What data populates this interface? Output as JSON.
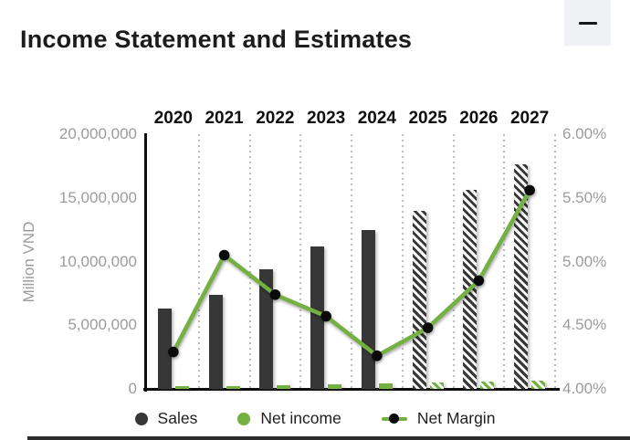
{
  "header": {
    "title": "Income Statement and Estimates",
    "collapse_button": "minimize"
  },
  "colors": {
    "sales": "#373737",
    "net_income": "#74b042",
    "net_margin_line": "#74b042",
    "marker_dot": "#0a0a0a",
    "tick_text": "#9c9c9c",
    "year_text": "#0f0f0f",
    "title_text": "#1c1c1e",
    "grid": "#bdbdbd"
  },
  "chart_data": {
    "type": "bar",
    "subtype": "grouped bars with overlay line",
    "categories": [
      "2020",
      "2021",
      "2022",
      "2023",
      "2024",
      "2025",
      "2026",
      "2027"
    ],
    "series": [
      {
        "name": "Sales",
        "type": "bar",
        "axis": "left",
        "values": [
          6300000,
          7400000,
          9400000,
          11200000,
          12500000,
          14000000,
          15600000,
          17600000
        ]
      },
      {
        "name": "Net income",
        "type": "bar",
        "axis": "left",
        "values": [
          200000,
          250000,
          320000,
          340000,
          420000,
          500000,
          600000,
          680000
        ]
      },
      {
        "name": "Net Margin",
        "type": "line",
        "axis": "right",
        "values": [
          4.29,
          5.05,
          4.74,
          4.57,
          4.26,
          4.48,
          4.85,
          5.56
        ]
      }
    ],
    "estimate_categories_hatched": [
      "2025",
      "2026",
      "2027"
    ],
    "left_axis": {
      "title": "Million VND",
      "min": 0,
      "max": 20000000,
      "tick_labels_top_to_bottom": [
        "20,000,000",
        "15,000,000",
        "10,000,000",
        "5,000,000",
        "0"
      ]
    },
    "right_axis": {
      "min": 4,
      "max": 6,
      "tick_labels_top_to_bottom": [
        "6.00%",
        "5.50%",
        "5.00%",
        "4.50%",
        "4.00%"
      ]
    },
    "grid": "vertical dotted separators between year groups",
    "legend_position": "bottom"
  },
  "legend": {
    "items": [
      {
        "label": "Sales",
        "marker": "circle"
      },
      {
        "label": "Net income",
        "marker": "circle"
      },
      {
        "label": "Net Margin",
        "marker": "line-dot"
      }
    ]
  }
}
